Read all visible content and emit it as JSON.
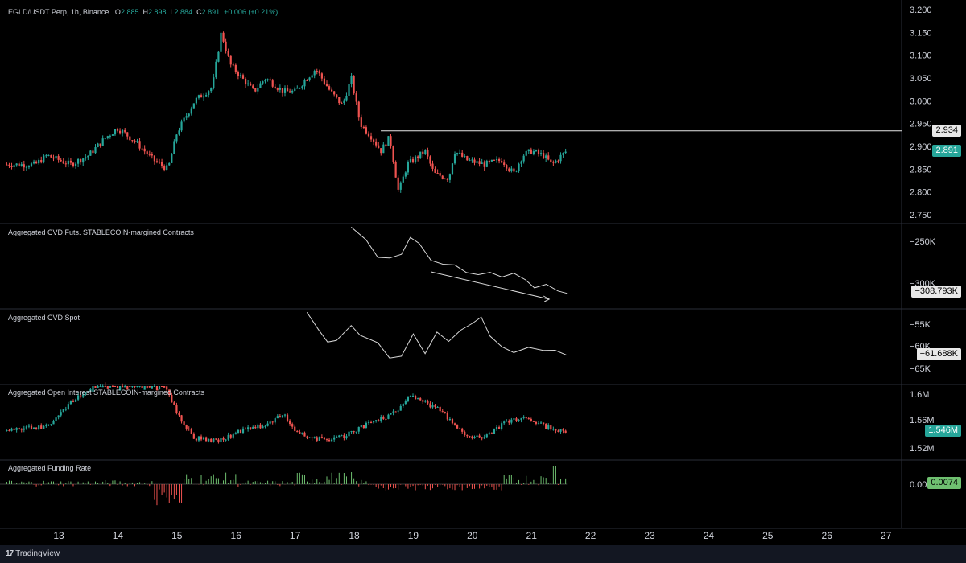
{
  "main_legend": {
    "symbol": "EGLD/USDT Perp, 1h, Binance",
    "o_label": "O",
    "o": "2.885",
    "h_label": "H",
    "h": "2.898",
    "l_label": "L",
    "l": "2.884",
    "c_label": "C",
    "c": "2.891",
    "change": "+0.006 (+0.21%)"
  },
  "panes": {
    "cvd_futs": "Aggregated CVD Futs. STABLECOIN-margined Contracts",
    "cvd_spot": "Aggregated CVD Spot",
    "open_interest": "Aggregated Open Interest STABLECOIN-margined Contracts",
    "funding": "Aggregated Funding Rate"
  },
  "axes": {
    "price": [
      "3.200",
      "3.150",
      "3.100",
      "3.050",
      "3.000",
      "2.950",
      "2.900",
      "2.850",
      "2.800",
      "2.750"
    ],
    "cvd_futs": [
      "−250K",
      "−300K"
    ],
    "cvd_spot": [
      "−55K",
      "−60K",
      "−65K"
    ],
    "open_interest": [
      "1.6M",
      "1.56M",
      "1.52M"
    ],
    "funding": [
      "0.0000"
    ],
    "dates": [
      "13",
      "14",
      "15",
      "16",
      "17",
      "18",
      "19",
      "20",
      "21",
      "22",
      "23",
      "24",
      "25",
      "26",
      "27"
    ]
  },
  "labels": {
    "resistance": "2.934",
    "last_price": "2.891",
    "cvd_futs_last": "−308.793K",
    "cvd_spot_last": "−61.688K",
    "oi_last": "1.546M",
    "funding_last": "0.0074"
  },
  "footer": {
    "brand": "TradingView",
    "logo": "tradingview-logo-icon"
  },
  "colors": {
    "up": "#26a69a",
    "down": "#ef5350",
    "bg": "#000000",
    "text": "#d1d4dc",
    "funding_up": "#6fc070",
    "funding_down": "#ef5350"
  },
  "chart_data": {
    "type": "candlestick",
    "x_labels": [
      "13",
      "14",
      "15",
      "16",
      "17",
      "18",
      "19",
      "20",
      "21",
      "22",
      "23",
      "24",
      "25",
      "26",
      "27"
    ],
    "price_ylim": [
      2.73,
      3.2
    ],
    "price_anchors": [
      [
        12.6,
        2.86
      ],
      [
        12.8,
        2.88
      ],
      [
        13.0,
        2.87
      ],
      [
        13.2,
        2.86
      ],
      [
        13.5,
        2.88
      ],
      [
        13.8,
        2.92
      ],
      [
        14.0,
        2.94
      ],
      [
        14.3,
        2.91
      ],
      [
        14.6,
        2.87
      ],
      [
        14.85,
        2.85
      ],
      [
        15.0,
        2.93
      ],
      [
        15.3,
        3.0
      ],
      [
        15.6,
        3.03
      ],
      [
        15.75,
        3.15
      ],
      [
        15.9,
        3.08
      ],
      [
        16.1,
        3.05
      ],
      [
        16.3,
        3.02
      ],
      [
        16.5,
        3.05
      ],
      [
        16.8,
        3.02
      ],
      [
        17.0,
        3.02
      ],
      [
        17.2,
        3.05
      ],
      [
        17.35,
        3.07
      ],
      [
        17.6,
        3.02
      ],
      [
        17.8,
        2.99
      ],
      [
        17.95,
        3.05
      ],
      [
        18.1,
        2.95
      ],
      [
        18.3,
        2.92
      ],
      [
        18.45,
        2.89
      ],
      [
        18.6,
        2.92
      ],
      [
        18.75,
        2.8
      ],
      [
        18.9,
        2.86
      ],
      [
        19.2,
        2.89
      ],
      [
        19.35,
        2.84
      ],
      [
        19.6,
        2.83
      ],
      [
        19.7,
        2.89
      ],
      [
        19.9,
        2.87
      ],
      [
        20.2,
        2.86
      ],
      [
        20.5,
        2.87
      ],
      [
        20.7,
        2.84
      ],
      [
        20.85,
        2.88
      ],
      [
        21.0,
        2.89
      ],
      [
        21.2,
        2.88
      ],
      [
        21.35,
        2.86
      ],
      [
        21.6,
        2.891
      ]
    ],
    "resistance": 2.934,
    "last_price": 2.891,
    "cvd_futs_last": -308793,
    "cvd_spot_last": -61688,
    "open_interest_last": 1546000,
    "funding_last": 0.0074
  }
}
